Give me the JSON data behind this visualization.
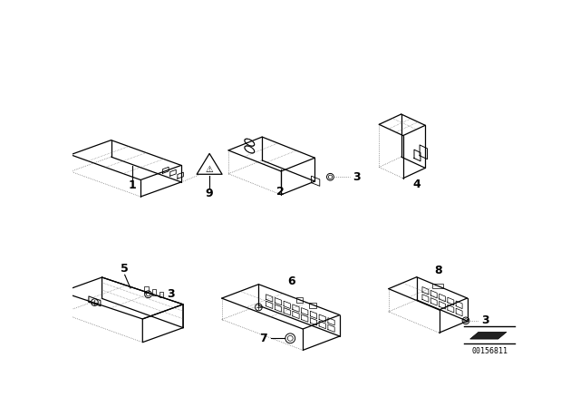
{
  "background_color": "#ffffff",
  "watermark": "00156811",
  "line_color": "#000000",
  "text_color": "#000000",
  "dot_color": "#555555"
}
